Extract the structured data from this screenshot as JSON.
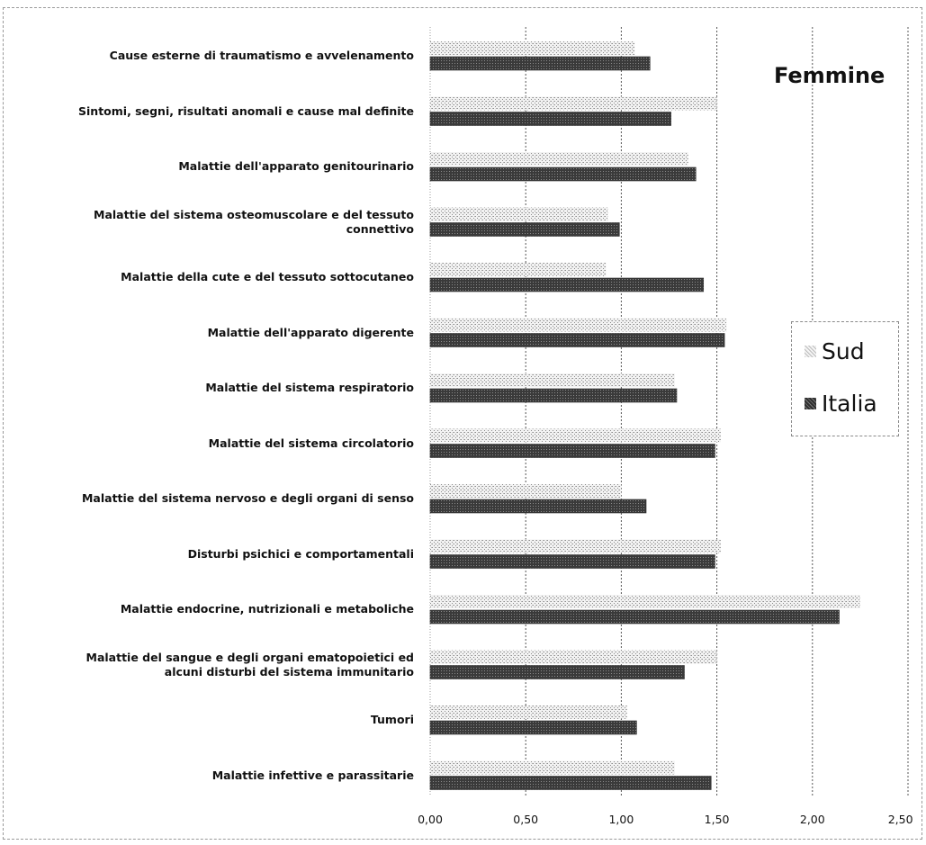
{
  "chart_data": {
    "type": "bar",
    "orientation": "horizontal",
    "title": "Femmine",
    "categories": [
      "Cause esterne di traumatismo e avvelenamento",
      "Sintomi, segni, risultati anomali e cause mal definite",
      "Malattie dell'apparato  genitourinario",
      "Malattie del sistema osteomuscolare  e del tessuto connettivo",
      "Malattie della cute e del tessuto sottocutaneo",
      "Malattie dell'apparato  digerente",
      "Malattie del sistema respiratorio",
      "Malattie del sistema circolatorio",
      "Malattie del sistema nervoso e degli organi di senso",
      "Disturbi psichici  e comportamentali",
      "Malattie endocrine, nutrizionali  e metaboliche",
      "Malattie del sangue  e degli organi ematopoietici ed alcuni disturbi del sistema immunitario",
      "Tumori",
      "Malattie infettive e parassitarie"
    ],
    "series": [
      {
        "name": "Sud",
        "color": "#c9c9c9",
        "values": [
          1.07,
          1.5,
          1.35,
          0.93,
          0.92,
          1.55,
          1.28,
          1.52,
          1.0,
          1.52,
          2.25,
          1.5,
          1.03,
          1.28
        ]
      },
      {
        "name": "Italia",
        "color": "#4a4a4a",
        "values": [
          1.15,
          1.26,
          1.39,
          0.99,
          1.43,
          1.54,
          1.29,
          1.49,
          1.13,
          1.49,
          2.14,
          1.33,
          1.08,
          1.47
        ]
      }
    ],
    "xlim": [
      0,
      2.5
    ],
    "xticks": [
      "0,00",
      "0,50",
      "1,00",
      "1,50",
      "2,00",
      "2,50"
    ],
    "xtick_values": [
      0,
      0.5,
      1.0,
      1.5,
      2.0,
      2.5
    ],
    "grid": "vertical-dashed",
    "legend_position": "right",
    "xlabel": "",
    "ylabel": ""
  }
}
